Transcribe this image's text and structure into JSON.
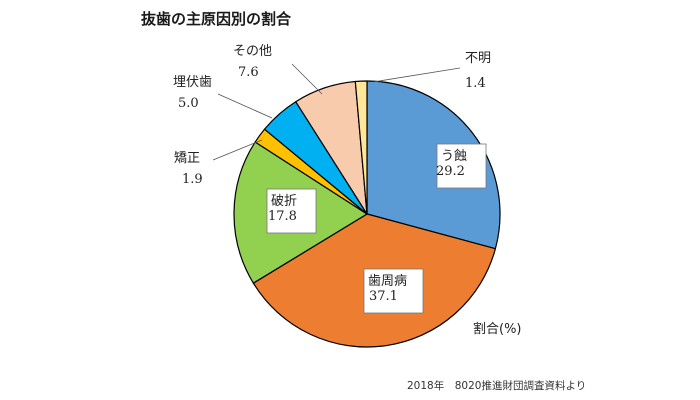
{
  "chart_data": {
    "type": "pie",
    "title": "抜歯の主原因別の割合",
    "unit_label": "割合(%)",
    "source": "2018年　8020推進財団調査資料より",
    "slices": [
      {
        "label": "う蝕",
        "value": 29.2,
        "value_text": "29.2",
        "color": "#5b9bd5"
      },
      {
        "label": "歯周病",
        "value": 37.1,
        "value_text": "37.1",
        "color": "#ed7d31"
      },
      {
        "label": "破折",
        "value": 17.8,
        "value_text": "17.8",
        "color": "#92d050"
      },
      {
        "label": "矯正",
        "value": 1.9,
        "value_text": "1.9",
        "color": "#ffc000"
      },
      {
        "label": "埋伏歯",
        "value": 5.0,
        "value_text": "5.0",
        "color": "#00b0f0"
      },
      {
        "label": "その他",
        "value": 7.6,
        "value_text": "7.6",
        "color": "#f8cbad"
      },
      {
        "label": "不明",
        "value": 1.4,
        "value_text": "1.4",
        "color": "#ffe699"
      }
    ]
  }
}
